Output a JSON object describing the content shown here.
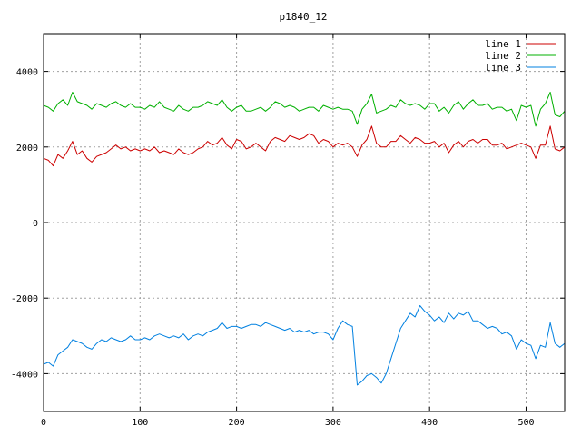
{
  "chart_data": {
    "type": "line",
    "title": "p1840_12",
    "xlabel": "",
    "ylabel": "",
    "xlim": [
      0,
      540
    ],
    "ylim": [
      -5000,
      5000
    ],
    "xticks": [
      0,
      100,
      200,
      300,
      400,
      500
    ],
    "yticks": [
      -4000,
      -2000,
      0,
      2000,
      4000
    ],
    "grid": true,
    "legend_position": "top-right",
    "series": [
      {
        "name": "line 1",
        "color": "#cc0000",
        "x": [
          0,
          5,
          10,
          15,
          20,
          25,
          30,
          35,
          40,
          45,
          50,
          55,
          60,
          65,
          70,
          75,
          80,
          85,
          90,
          95,
          100,
          105,
          110,
          115,
          120,
          125,
          130,
          135,
          140,
          145,
          150,
          155,
          160,
          165,
          170,
          175,
          180,
          185,
          190,
          195,
          200,
          205,
          210,
          215,
          220,
          225,
          230,
          235,
          240,
          245,
          250,
          255,
          260,
          265,
          270,
          275,
          280,
          285,
          290,
          295,
          300,
          305,
          310,
          315,
          320,
          325,
          330,
          335,
          340,
          345,
          350,
          355,
          360,
          365,
          370,
          375,
          380,
          385,
          390,
          395,
          400,
          405,
          410,
          415,
          420,
          425,
          430,
          435,
          440,
          445,
          450,
          455,
          460,
          465,
          470,
          475,
          480,
          485,
          490,
          495,
          500,
          505,
          510,
          515,
          520,
          525,
          530,
          535,
          540
        ],
        "y": [
          1700,
          1650,
          1500,
          1800,
          1700,
          1900,
          2150,
          1800,
          1900,
          1700,
          1600,
          1750,
          1800,
          1850,
          1950,
          2050,
          1950,
          2000,
          1900,
          1950,
          1900,
          1950,
          1900,
          2000,
          1850,
          1900,
          1850,
          1800,
          1950,
          1850,
          1800,
          1850,
          1950,
          2000,
          2150,
          2050,
          2100,
          2250,
          2050,
          1950,
          2200,
          2150,
          1950,
          2000,
          2100,
          2000,
          1900,
          2150,
          2250,
          2200,
          2150,
          2300,
          2250,
          2200,
          2250,
          2350,
          2300,
          2100,
          2200,
          2150,
          2000,
          2100,
          2050,
          2100,
          2000,
          1750,
          2050,
          2200,
          2550,
          2100,
          2000,
          2000,
          2150,
          2150,
          2300,
          2200,
          2100,
          2250,
          2200,
          2100,
          2100,
          2150,
          2000,
          2100,
          1850,
          2050,
          2150,
          2000,
          2150,
          2200,
          2100,
          2200,
          2200,
          2050,
          2050,
          2100,
          1950,
          2000,
          2050,
          2100,
          2050,
          2000,
          1700,
          2050,
          2050,
          2550,
          1950,
          1900,
          2000
        ]
      },
      {
        "name": "line 2",
        "color": "#00b000",
        "x": [
          0,
          5,
          10,
          15,
          20,
          25,
          30,
          35,
          40,
          45,
          50,
          55,
          60,
          65,
          70,
          75,
          80,
          85,
          90,
          95,
          100,
          105,
          110,
          115,
          120,
          125,
          130,
          135,
          140,
          145,
          150,
          155,
          160,
          165,
          170,
          175,
          180,
          185,
          190,
          195,
          200,
          205,
          210,
          215,
          220,
          225,
          230,
          235,
          240,
          245,
          250,
          255,
          260,
          265,
          270,
          275,
          280,
          285,
          290,
          295,
          300,
          305,
          310,
          315,
          320,
          325,
          330,
          335,
          340,
          345,
          350,
          355,
          360,
          365,
          370,
          375,
          380,
          385,
          390,
          395,
          400,
          405,
          410,
          415,
          420,
          425,
          430,
          435,
          440,
          445,
          450,
          455,
          460,
          465,
          470,
          475,
          480,
          485,
          490,
          495,
          500,
          505,
          510,
          515,
          520,
          525,
          530,
          535,
          540
        ],
        "y": [
          3100,
          3050,
          2950,
          3150,
          3250,
          3100,
          3450,
          3200,
          3150,
          3100,
          3000,
          3150,
          3100,
          3050,
          3150,
          3200,
          3100,
          3050,
          3150,
          3050,
          3050,
          3000,
          3100,
          3050,
          3200,
          3050,
          3000,
          2950,
          3100,
          3000,
          2950,
          3050,
          3050,
          3100,
          3200,
          3150,
          3100,
          3250,
          3050,
          2950,
          3050,
          3100,
          2950,
          2950,
          3000,
          3050,
          2950,
          3050,
          3200,
          3150,
          3050,
          3100,
          3050,
          2950,
          3000,
          3050,
          3050,
          2950,
          3100,
          3050,
          3000,
          3050,
          3000,
          3000,
          2950,
          2600,
          3000,
          3150,
          3400,
          2900,
          2950,
          3000,
          3100,
          3050,
          3250,
          3150,
          3100,
          3150,
          3100,
          3000,
          3150,
          3150,
          2950,
          3050,
          2900,
          3100,
          3200,
          3000,
          3150,
          3250,
          3100,
          3100,
          3150,
          3000,
          3050,
          3050,
          2950,
          3000,
          2700,
          3100,
          3050,
          3100,
          2550,
          3000,
          3150,
          3450,
          2850,
          2800,
          2950
        ]
      },
      {
        "name": "line 3",
        "color": "#0080e0",
        "x": [
          0,
          5,
          10,
          15,
          20,
          25,
          30,
          35,
          40,
          45,
          50,
          55,
          60,
          65,
          70,
          75,
          80,
          85,
          90,
          95,
          100,
          105,
          110,
          115,
          120,
          125,
          130,
          135,
          140,
          145,
          150,
          155,
          160,
          165,
          170,
          175,
          180,
          185,
          190,
          195,
          200,
          205,
          210,
          215,
          220,
          225,
          230,
          235,
          240,
          245,
          250,
          255,
          260,
          265,
          270,
          275,
          280,
          285,
          290,
          295,
          300,
          305,
          310,
          315,
          320,
          325,
          330,
          335,
          340,
          345,
          350,
          355,
          360,
          365,
          370,
          375,
          380,
          385,
          390,
          395,
          400,
          405,
          410,
          415,
          420,
          425,
          430,
          435,
          440,
          445,
          450,
          455,
          460,
          465,
          470,
          475,
          480,
          485,
          490,
          495,
          500,
          505,
          510,
          515,
          520,
          525,
          530,
          535,
          540
        ],
        "y": [
          -3750,
          -3700,
          -3800,
          -3500,
          -3400,
          -3300,
          -3100,
          -3150,
          -3200,
          -3300,
          -3350,
          -3200,
          -3100,
          -3150,
          -3050,
          -3100,
          -3150,
          -3100,
          -3000,
          -3100,
          -3100,
          -3050,
          -3100,
          -3000,
          -2950,
          -3000,
          -3050,
          -3000,
          -3050,
          -2950,
          -3100,
          -3000,
          -2950,
          -3000,
          -2900,
          -2850,
          -2800,
          -2650,
          -2800,
          -2750,
          -2750,
          -2800,
          -2750,
          -2700,
          -2700,
          -2750,
          -2650,
          -2700,
          -2750,
          -2800,
          -2850,
          -2800,
          -2900,
          -2850,
          -2900,
          -2850,
          -2950,
          -2900,
          -2900,
          -2950,
          -3100,
          -2800,
          -2600,
          -2700,
          -2750,
          -4300,
          -4200,
          -4050,
          -4000,
          -4100,
          -4250,
          -4000,
          -3600,
          -3200,
          -2800,
          -2600,
          -2400,
          -2500,
          -2200,
          -2350,
          -2450,
          -2600,
          -2500,
          -2650,
          -2400,
          -2550,
          -2400,
          -2450,
          -2350,
          -2600,
          -2600,
          -2700,
          -2800,
          -2750,
          -2800,
          -2950,
          -2900,
          -3000,
          -3350,
          -3100,
          -3200,
          -3250,
          -3600,
          -3250,
          -3300,
          -2650,
          -3200,
          -3300,
          -3200
        ]
      }
    ]
  }
}
